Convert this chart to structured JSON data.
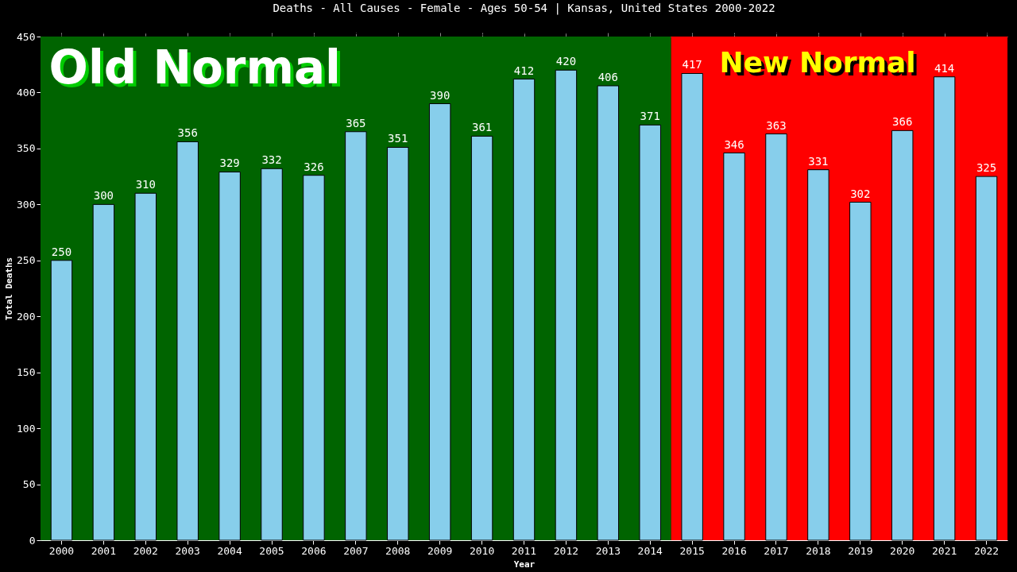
{
  "chart_data": {
    "type": "bar",
    "title": "Deaths - All Causes - Female - Ages 50-54 | Kansas, United States 2000-2022",
    "xlabel": "Year",
    "ylabel": "Total Deaths",
    "categories": [
      "2000",
      "2001",
      "2002",
      "2003",
      "2004",
      "2005",
      "2006",
      "2007",
      "2008",
      "2009",
      "2010",
      "2011",
      "2012",
      "2013",
      "2014",
      "2015",
      "2016",
      "2017",
      "2018",
      "2019",
      "2020",
      "2021",
      "2022"
    ],
    "series": [
      {
        "color": "#87ceeb",
        "values": [
          250,
          300,
          310,
          356,
          329,
          332,
          326,
          365,
          351,
          390,
          361,
          412,
          420,
          406,
          371,
          417,
          346,
          363,
          331,
          302,
          366,
          414,
          325
        ]
      }
    ],
    "ylim": [
      0,
      450
    ],
    "yticks": [
      0,
      50,
      100,
      150,
      200,
      250,
      300,
      350,
      400,
      450
    ],
    "bands": [
      {
        "axis": "x",
        "from": "2000",
        "to": "2014",
        "label": "Old Normal",
        "color": "#006400"
      },
      {
        "axis": "x",
        "from": "2015",
        "to": "2022",
        "label": "New Normal",
        "color": "#ff0000"
      }
    ],
    "data_labels": true,
    "grid": false
  }
}
